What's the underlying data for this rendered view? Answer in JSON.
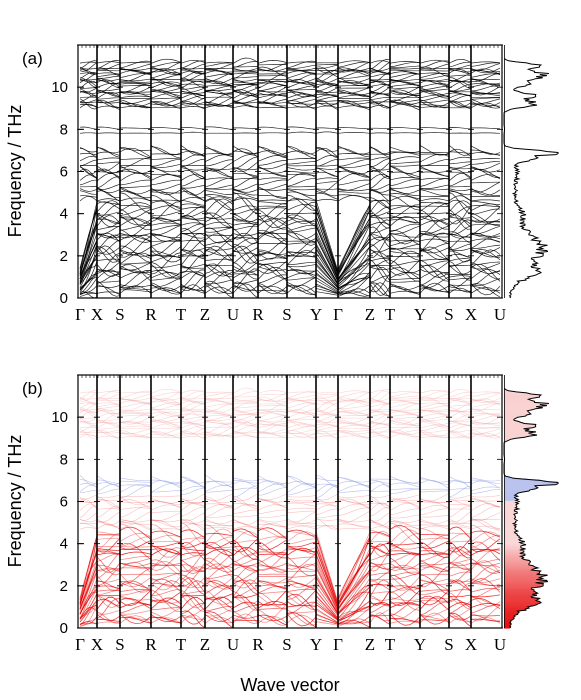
{
  "figure": {
    "xlabel": "Wave vector",
    "panels": [
      {
        "label": "(a)",
        "ylabel": "Frequency / THz",
        "ylim": [
          0,
          12
        ],
        "yticks": [
          0,
          2,
          4,
          6,
          8,
          10
        ],
        "style": "monochrome",
        "band_color": "#000000"
      },
      {
        "label": "(b)",
        "ylabel": "Frequency / THz",
        "ylim": [
          0,
          12
        ],
        "yticks": [
          0,
          2,
          4,
          6,
          8,
          10
        ],
        "style": "colored",
        "low_color": "#e60000",
        "mid_color": "#9aa6e6",
        "high_color": "#f4a0a0"
      }
    ]
  },
  "chart_data": [
    {
      "type": "line",
      "chart_kind": "phonon dispersion with density of states",
      "ylabel": "Frequency / THz",
      "xlabel": "Wave vector",
      "ylim": [
        0,
        12
      ],
      "x_ticks": [
        "Γ",
        "X",
        "S",
        "R",
        "T",
        "Z",
        "U",
        "R",
        "S",
        "Y",
        "Γ",
        "Z",
        "T",
        "Y",
        "S",
        "X",
        "U"
      ],
      "band_groups_thz": [
        [
          0,
          4.6
        ],
        [
          4.6,
          7.2
        ],
        [
          7.8,
          8.2
        ],
        [
          9.0,
          11.2
        ]
      ],
      "dos_peaks_thz": [
        2.0,
        6.9,
        9.6,
        10.6,
        11.0
      ]
    },
    {
      "type": "line",
      "chart_kind": "phonon dispersion colored by character with density of states",
      "ylabel": "Frequency / THz",
      "xlabel": "Wave vector",
      "ylim": [
        0,
        12
      ],
      "x_ticks": [
        "Γ",
        "X",
        "S",
        "R",
        "T",
        "Z",
        "U",
        "R",
        "S",
        "Y",
        "Γ",
        "Z",
        "T",
        "Y",
        "S",
        "X",
        "U"
      ],
      "band_groups_thz": [
        [
          0,
          4.6
        ],
        [
          4.6,
          7.2
        ],
        [
          9.0,
          11.2
        ]
      ],
      "dos_peaks_thz": [
        1.2,
        2.0,
        6.9,
        9.6,
        10.6,
        11.0
      ]
    }
  ]
}
